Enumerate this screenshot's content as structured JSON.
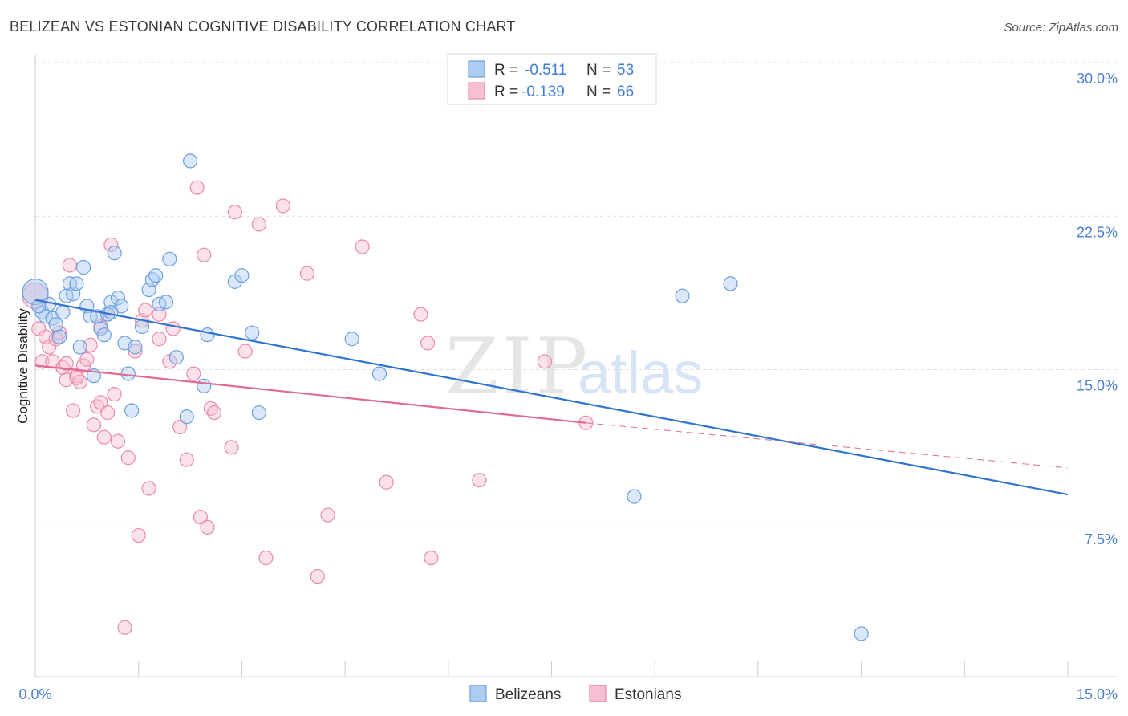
{
  "chart_data": {
    "type": "scatter",
    "title": "BELIZEAN VS ESTONIAN COGNITIVE DISABILITY CORRELATION CHART",
    "source": "Source: ZipAtlas.com",
    "ylabel": "Cognitive Disability",
    "xlim": [
      0,
      15
    ],
    "ylim": [
      0,
      30
    ],
    "x_ticks": [
      "0.0%",
      "15.0%"
    ],
    "y_ticks": [
      {
        "value": 30,
        "label": "30.0%"
      },
      {
        "value": 22.5,
        "label": "22.5%"
      },
      {
        "value": 15,
        "label": "15.0%"
      },
      {
        "value": 7.5,
        "label": "7.5%"
      }
    ],
    "legend": {
      "r_label": "R =",
      "n_label": "N =",
      "entries": [
        {
          "r": "-0.511",
          "n": "53"
        },
        {
          "r": "-0.139",
          "n": "66"
        }
      ]
    },
    "watermark": "ZIPatlas",
    "colors": {
      "belizeans_fill": "#aecbf2",
      "belizeans_stroke": "#6b9fe0",
      "belizeans_line": "#2f74d0",
      "estonians_fill": "#f7bfd0",
      "estonians_stroke": "#e88aa8",
      "estonians_line": "#e06a92",
      "tick_text": "#4a7fd0",
      "grid": "#dddddd"
    },
    "series": [
      {
        "name": "Belizeans",
        "trend": {
          "x0": 0,
          "y0": 18.4,
          "x1": 15,
          "y1": 8.9
        },
        "points": [
          [
            0.0,
            18.8
          ],
          [
            0.1,
            17.8
          ],
          [
            0.15,
            17.6
          ],
          [
            0.2,
            18.2
          ],
          [
            0.25,
            17.5
          ],
          [
            0.3,
            17.2
          ],
          [
            0.35,
            16.6
          ],
          [
            0.4,
            17.8
          ],
          [
            0.45,
            18.6
          ],
          [
            0.5,
            19.2
          ],
          [
            0.55,
            18.7
          ],
          [
            0.6,
            19.2
          ],
          [
            0.65,
            16.1
          ],
          [
            0.7,
            20.0
          ],
          [
            0.75,
            18.1
          ],
          [
            0.8,
            17.6
          ],
          [
            0.85,
            14.7
          ],
          [
            0.9,
            17.6
          ],
          [
            0.95,
            17.0
          ],
          [
            1.0,
            16.7
          ],
          [
            1.05,
            17.7
          ],
          [
            1.1,
            18.3
          ],
          [
            1.15,
            20.7
          ],
          [
            1.2,
            18.5
          ],
          [
            1.25,
            18.1
          ],
          [
            1.3,
            16.3
          ],
          [
            1.35,
            14.8
          ],
          [
            1.4,
            13.0
          ],
          [
            1.45,
            16.1
          ],
          [
            1.55,
            17.1
          ],
          [
            1.65,
            18.9
          ],
          [
            1.7,
            19.4
          ],
          [
            1.75,
            19.6
          ],
          [
            1.8,
            18.2
          ],
          [
            1.9,
            18.3
          ],
          [
            1.95,
            20.4
          ],
          [
            2.05,
            15.6
          ],
          [
            2.2,
            12.7
          ],
          [
            2.25,
            25.2
          ],
          [
            2.45,
            14.2
          ],
          [
            2.5,
            16.7
          ],
          [
            2.9,
            19.3
          ],
          [
            3.0,
            19.6
          ],
          [
            3.15,
            16.8
          ],
          [
            3.25,
            12.9
          ],
          [
            4.6,
            16.5
          ],
          [
            5.0,
            14.8
          ],
          [
            8.7,
            8.8
          ],
          [
            9.4,
            18.6
          ],
          [
            10.1,
            19.2
          ],
          [
            12.0,
            2.1
          ],
          [
            0.05,
            18.1
          ],
          [
            1.1,
            17.8
          ]
        ]
      },
      {
        "name": "Estonians",
        "trend": {
          "x0": 0,
          "y0": 15.2,
          "x1": 8.0,
          "y1": 12.4
        },
        "trend_dashed": {
          "x0": 8.0,
          "y0": 12.4,
          "x1": 15,
          "y1": 10.2
        },
        "points": [
          [
            0.0,
            18.6
          ],
          [
            0.05,
            17.0
          ],
          [
            0.1,
            15.4
          ],
          [
            0.15,
            16.6
          ],
          [
            0.2,
            16.1
          ],
          [
            0.25,
            15.4
          ],
          [
            0.3,
            16.5
          ],
          [
            0.35,
            16.8
          ],
          [
            0.4,
            15.1
          ],
          [
            0.45,
            14.5
          ],
          [
            0.5,
            20.1
          ],
          [
            0.55,
            13.0
          ],
          [
            0.6,
            14.7
          ],
          [
            0.65,
            14.4
          ],
          [
            0.7,
            15.2
          ],
          [
            0.75,
            15.5
          ],
          [
            0.8,
            16.2
          ],
          [
            0.85,
            12.3
          ],
          [
            0.9,
            13.2
          ],
          [
            0.95,
            13.4
          ],
          [
            1.0,
            11.7
          ],
          [
            1.05,
            17.7
          ],
          [
            1.1,
            21.1
          ],
          [
            1.15,
            13.8
          ],
          [
            1.2,
            11.5
          ],
          [
            1.35,
            10.7
          ],
          [
            1.45,
            15.9
          ],
          [
            1.5,
            6.9
          ],
          [
            1.55,
            17.4
          ],
          [
            1.6,
            17.9
          ],
          [
            1.65,
            9.2
          ],
          [
            1.8,
            17.7
          ],
          [
            1.95,
            15.4
          ],
          [
            2.0,
            17.0
          ],
          [
            2.1,
            12.2
          ],
          [
            2.2,
            10.6
          ],
          [
            2.3,
            14.8
          ],
          [
            2.35,
            23.9
          ],
          [
            2.4,
            7.8
          ],
          [
            2.45,
            20.6
          ],
          [
            2.5,
            7.3
          ],
          [
            2.55,
            13.1
          ],
          [
            2.6,
            12.9
          ],
          [
            2.85,
            11.2
          ],
          [
            2.9,
            22.7
          ],
          [
            3.05,
            15.9
          ],
          [
            3.25,
            22.1
          ],
          [
            3.35,
            5.8
          ],
          [
            3.6,
            23.0
          ],
          [
            3.95,
            19.7
          ],
          [
            4.1,
            4.9
          ],
          [
            4.25,
            7.9
          ],
          [
            4.75,
            21.0
          ],
          [
            5.1,
            9.5
          ],
          [
            5.6,
            17.7
          ],
          [
            5.7,
            16.3
          ],
          [
            5.75,
            5.8
          ],
          [
            6.45,
            9.6
          ],
          [
            7.4,
            15.4
          ],
          [
            8.0,
            12.4
          ],
          [
            1.3,
            2.4
          ],
          [
            0.6,
            14.6
          ],
          [
            0.95,
            17.1
          ],
          [
            1.05,
            12.9
          ],
          [
            0.45,
            15.3
          ],
          [
            1.8,
            16.5
          ]
        ]
      }
    ],
    "bottom_legend": [
      "Belizeans",
      "Estonians"
    ]
  }
}
